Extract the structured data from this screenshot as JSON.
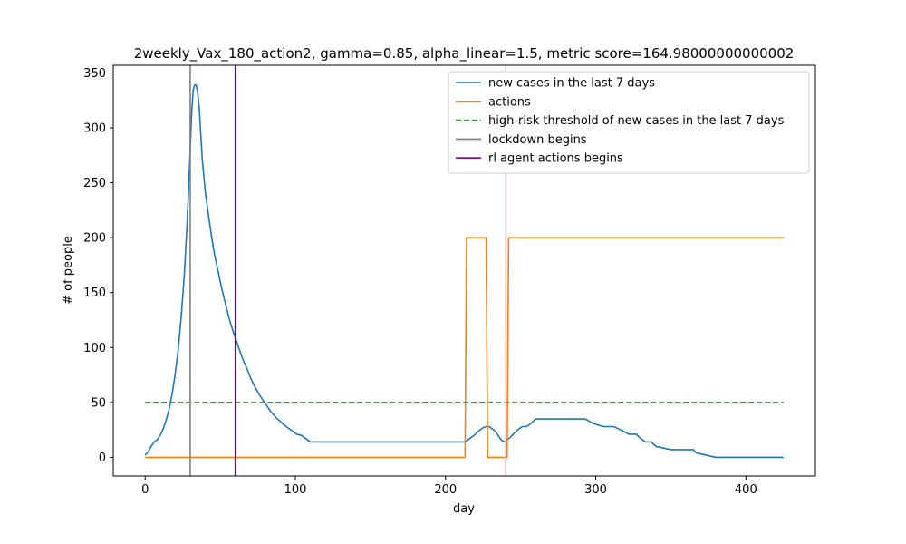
{
  "chart_data": {
    "type": "line",
    "title": "2weekly_Vax_180_action2, gamma=0.85, alpha_linear=1.5, metric score=164.98000000000002",
    "xlabel": "day",
    "ylabel": "# of people",
    "xlim": [
      -21.25,
      446.25
    ],
    "ylim": [
      -17,
      357
    ],
    "xticks": [
      0,
      100,
      200,
      300,
      400
    ],
    "yticks": [
      0,
      50,
      100,
      150,
      200,
      250,
      300,
      350
    ],
    "legend_position": "top-right",
    "series": [
      {
        "name": "new cases in the last 7 days",
        "color": "#1f77b4",
        "style": "solid",
        "x": [
          0,
          2,
          4,
          6,
          8,
          10,
          12,
          14,
          16,
          18,
          20,
          22,
          24,
          26,
          28,
          30,
          31,
          32,
          33,
          34,
          35,
          36,
          38,
          40,
          42,
          44,
          46,
          48,
          50,
          52,
          54,
          56,
          58,
          60,
          62,
          64,
          66,
          68,
          70,
          72,
          74,
          76,
          78,
          80,
          82,
          84,
          86,
          88,
          90,
          92,
          95,
          98,
          101,
          104,
          107,
          110,
          113,
          120,
          150,
          180,
          200,
          213,
          216,
          219,
          222,
          225,
          227,
          229,
          231,
          233,
          235,
          237,
          239,
          241,
          243,
          245,
          248,
          251,
          254,
          257,
          260,
          262,
          265,
          275,
          285,
          293,
          298,
          305,
          312,
          318,
          322,
          327,
          330,
          333,
          337,
          340,
          350,
          360,
          365,
          367,
          380,
          400,
          425
        ],
        "y": [
          2,
          5,
          10,
          14,
          16,
          20,
          26,
          34,
          44,
          58,
          76,
          98,
          128,
          165,
          215,
          280,
          315,
          335,
          339,
          339,
          332,
          318,
          272,
          242,
          222,
          203,
          186,
          173,
          160,
          148,
          137,
          126,
          117,
          109,
          101,
          93,
          86,
          80,
          73,
          67,
          62,
          57,
          53,
          49,
          45,
          41,
          38,
          35,
          33,
          30,
          27,
          24,
          21,
          20,
          17,
          14,
          14,
          14,
          14,
          14,
          14,
          14,
          17,
          20,
          24,
          27,
          28,
          28,
          26,
          24,
          20,
          16,
          14,
          16,
          18,
          21,
          25,
          28,
          28,
          31,
          35,
          35,
          35,
          35,
          35,
          35,
          31,
          28,
          28,
          24,
          21,
          21,
          17,
          14,
          14,
          10,
          7,
          7,
          7,
          4,
          0,
          0,
          0
        ]
      },
      {
        "name": "actions",
        "color": "#ff7f0e",
        "style": "solid",
        "x": [
          0,
          213,
          214,
          227,
          228,
          241,
          242,
          425
        ],
        "y": [
          0,
          0,
          200,
          200,
          0,
          0,
          200,
          200
        ]
      },
      {
        "name": "high-risk threshold of new cases in the last 7 days",
        "color": "#2ca02c",
        "style": "dashed",
        "x": [
          0,
          425
        ],
        "y": [
          50,
          50
        ]
      }
    ],
    "vlines": [
      {
        "name": "lockdown begins",
        "color": "#808080",
        "x": 30,
        "in_legend": true
      },
      {
        "name": "rl agent actions begins",
        "color": "#800080",
        "x": 60,
        "in_legend": true
      },
      {
        "name": "",
        "color": "#ffc0cb",
        "x": 240,
        "in_legend": false
      }
    ]
  }
}
